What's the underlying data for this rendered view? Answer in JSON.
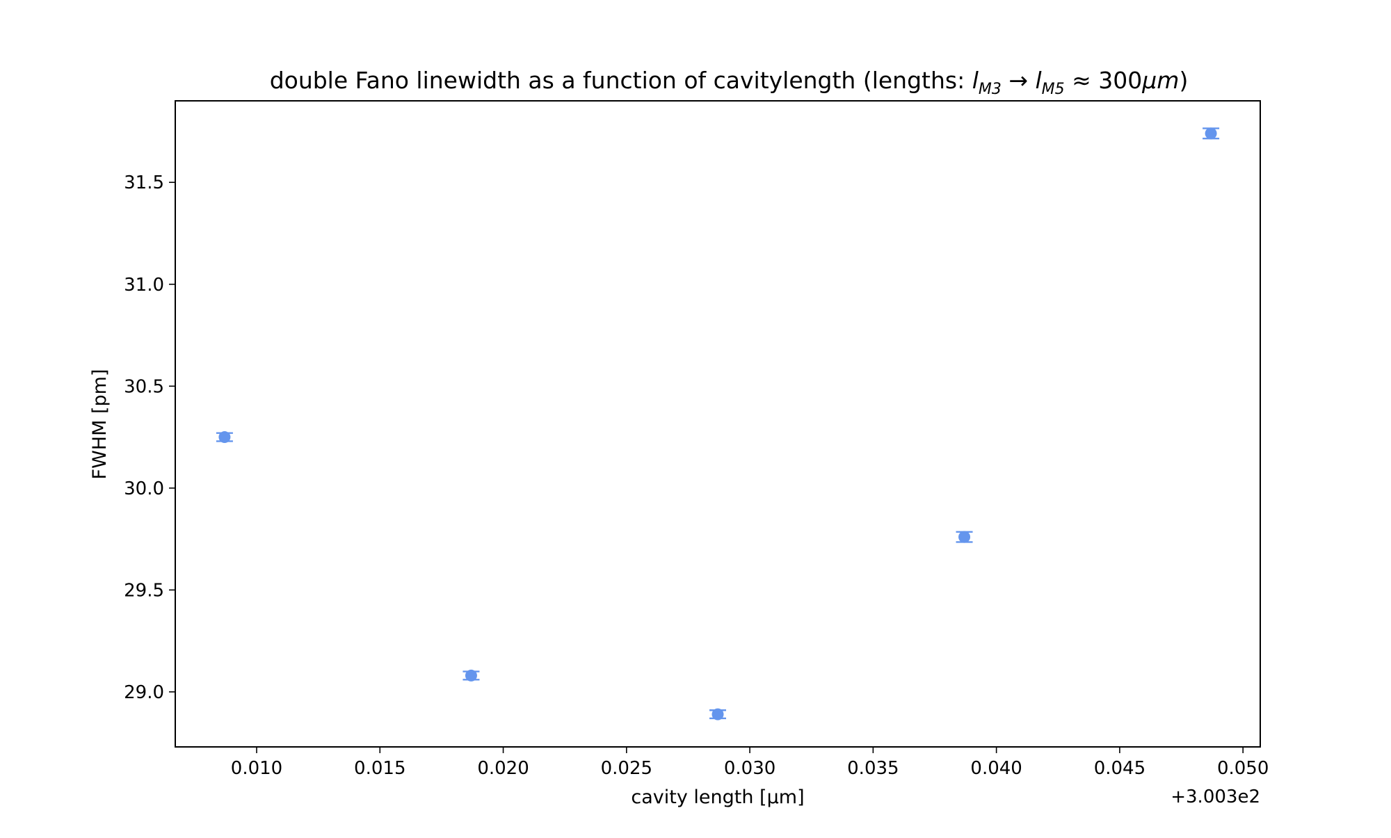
{
  "chart_data": {
    "type": "scatter",
    "title_parts": {
      "prefix": "double Fano linewidth as a function of cavitylength (lengths: ",
      "l1": "l",
      "sub1": "M3",
      "arrow": " → ",
      "l2": "l",
      "sub2": "M5",
      "approx": " ≈ 300",
      "unit": "μm",
      "suffix": ")"
    },
    "xlabel": "cavity length [µm]",
    "ylabel": "FWHM [pm]",
    "x_offset_label": "+3.003e2",
    "x_ticks": [
      "0.010",
      "0.015",
      "0.020",
      "0.025",
      "0.030",
      "0.035",
      "0.040",
      "0.045",
      "0.050"
    ],
    "y_ticks": [
      "29.0",
      "29.5",
      "30.0",
      "30.5",
      "31.0",
      "31.5"
    ],
    "xlim": [
      0.0067,
      0.0507
    ],
    "ylim": [
      28.73,
      31.9
    ],
    "x_offset": 300.3,
    "grid": false,
    "marker_color": "#6495ED",
    "points": [
      {
        "x": 0.0087,
        "y": 30.25,
        "yerr": 0.02
      },
      {
        "x": 0.0187,
        "y": 29.08,
        "yerr": 0.02
      },
      {
        "x": 0.0287,
        "y": 28.89,
        "yerr": 0.02
      },
      {
        "x": 0.0387,
        "y": 29.76,
        "yerr": 0.025
      },
      {
        "x": 0.0487,
        "y": 31.74,
        "yerr": 0.025
      }
    ]
  }
}
